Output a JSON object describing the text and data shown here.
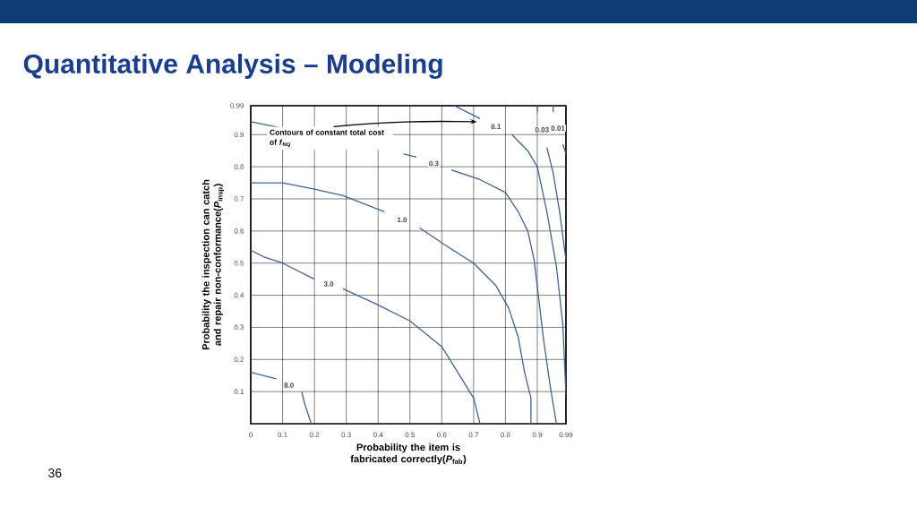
{
  "chart_data": {
    "type": "line",
    "title": "Quantitative Analysis – Modeling",
    "xlabel": "Probability the item is fabricated correctly(*P*$_{fab}$)",
    "ylabel": "Probability the inspection can catch and repair non-conformance(*P*$_{insp}$)",
    "annotations": [
      {
        "text": "Contours of constant total cost of *f*$_{NQ}$",
        "x": 0.71,
        "y": 0.94
      },
      "36"
    ],
    "xlim": [
      0,
      0.99
    ],
    "ylim": [
      0,
      0.99
    ],
    "xticks": [
      0,
      0.1,
      0.2,
      0.3,
      0.4,
      0.5,
      0.6,
      0.7,
      0.8,
      0.9,
      0.99
    ],
    "yticks": [
      0.1,
      0.2,
      0.3,
      0.4,
      0.5,
      0.6,
      0.7,
      0.8,
      0.9,
      0.99
    ],
    "grid": true,
    "legend": false,
    "marker": "none",
    "line_style": "solid",
    "series": [
      {
        "name": "8.0",
        "color": "#41628f",
        "x": [
          0,
          0.08,
          null,
          0.16,
          0.17,
          0.19
        ],
        "values": [
          0.16,
          0.14,
          null,
          0.1,
          0.06,
          0
        ]
      },
      {
        "name": "3.0",
        "color": "#41628f",
        "x": [
          0,
          0.04,
          0.1,
          0.2,
          null,
          0.29,
          0.4,
          0.5,
          0.6,
          0.65,
          0.7,
          0.72
        ],
        "values": [
          0.54,
          0.52,
          0.5,
          0.45,
          null,
          0.42,
          0.37,
          0.32,
          0.24,
          0.16,
          0.08,
          0
        ]
      },
      {
        "name": "1.0",
        "color": "#41628f",
        "x": [
          0,
          0.1,
          0.2,
          0.29,
          0.42,
          null,
          0.53,
          0.62,
          0.7,
          0.77,
          0.81,
          0.84,
          0.86,
          0.88,
          0.88
        ],
        "values": [
          0.75,
          0.75,
          0.73,
          0.71,
          0.66,
          null,
          0.61,
          0.55,
          0.5,
          0.43,
          0.36,
          0.27,
          0.16,
          0.08,
          0
        ]
      },
      {
        "name": "0.3",
        "color": "#41628f",
        "x": [
          0,
          0.1,
          null,
          0.48,
          0.52,
          null,
          0.63,
          0.72,
          0.8,
          0.84,
          0.87,
          0.89,
          0.92,
          0.94,
          0.96
        ],
        "values": [
          0.94,
          0.92,
          null,
          0.84,
          0.83,
          null,
          0.79,
          0.76,
          0.72,
          0.66,
          0.6,
          0.51,
          0.26,
          0.12,
          0
        ]
      },
      {
        "name": "0.1",
        "color": "#41628f",
        "x": [
          0.64,
          0.72,
          null,
          0.82,
          0.87,
          0.9,
          0.93,
          0.96,
          0.98,
          0.99
        ],
        "values": [
          0.99,
          0.95,
          null,
          0.9,
          0.85,
          0.8,
          0.66,
          0.49,
          0.31,
          0.09
        ]
      },
      {
        "name": "0.03",
        "color": "#41628f",
        "x": [
          0.9,
          0.9,
          null,
          0.93,
          0.95,
          0.97,
          0.99
        ],
        "values": [
          0.99,
          0.97,
          null,
          0.86,
          0.78,
          0.66,
          0.51
        ]
      },
      {
        "name": "0.01",
        "color": "#41628f",
        "x": [
          0.95,
          0.95,
          null,
          0.98,
          0.99
        ],
        "values": [
          0.99,
          0.97,
          null,
          0.87,
          0.84
        ]
      }
    ]
  }
}
